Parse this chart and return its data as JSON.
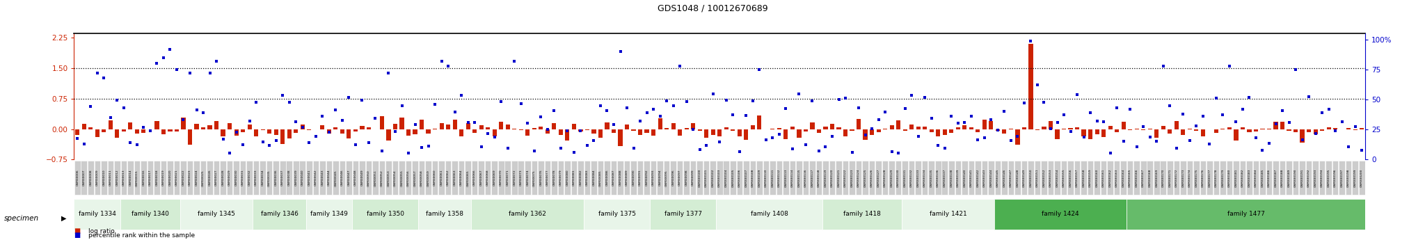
{
  "title": "GDS1048 / 10012670689",
  "left_ylim": [
    -0.75,
    2.35
  ],
  "right_ylim": [
    0,
    105
  ],
  "left_yticks": [
    -0.75,
    0,
    0.75,
    1.5,
    2.25
  ],
  "right_yticks": [
    0,
    25,
    50,
    75,
    100
  ],
  "families": [
    {
      "name": "family 1334",
      "n": 7,
      "color": "#e8f5e9"
    },
    {
      "name": "family 1340",
      "n": 9,
      "color": "#d4edd4"
    },
    {
      "name": "family 1345",
      "n": 11,
      "color": "#e8f5e9"
    },
    {
      "name": "family 1346",
      "n": 8,
      "color": "#d4edd4"
    },
    {
      "name": "family 1349",
      "n": 7,
      "color": "#e8f5e9"
    },
    {
      "name": "family 1350",
      "n": 10,
      "color": "#d4edd4"
    },
    {
      "name": "family 1358",
      "n": 8,
      "color": "#e8f5e9"
    },
    {
      "name": "family 1362",
      "n": 17,
      "color": "#d4edd4"
    },
    {
      "name": "family 1375",
      "n": 10,
      "color": "#e8f5e9"
    },
    {
      "name": "family 1377",
      "n": 10,
      "color": "#d4edd4"
    },
    {
      "name": "family 1408",
      "n": 16,
      "color": "#e8f5e9"
    },
    {
      "name": "family 1418",
      "n": 12,
      "color": "#d4edd4"
    },
    {
      "name": "family 1421",
      "n": 14,
      "color": "#e8f5e9"
    },
    {
      "name": "family 1424",
      "n": 20,
      "color": "#4caf50"
    },
    {
      "name": "family 1477",
      "n": 36,
      "color": "#66bb6a"
    }
  ],
  "log_ratio_color": "#cc2200",
  "percentile_color": "#0000cc",
  "background_color": "#ffffff",
  "title_color": "#000000",
  "left_tick_color": "#cc2200",
  "right_tick_color": "#0000cc"
}
